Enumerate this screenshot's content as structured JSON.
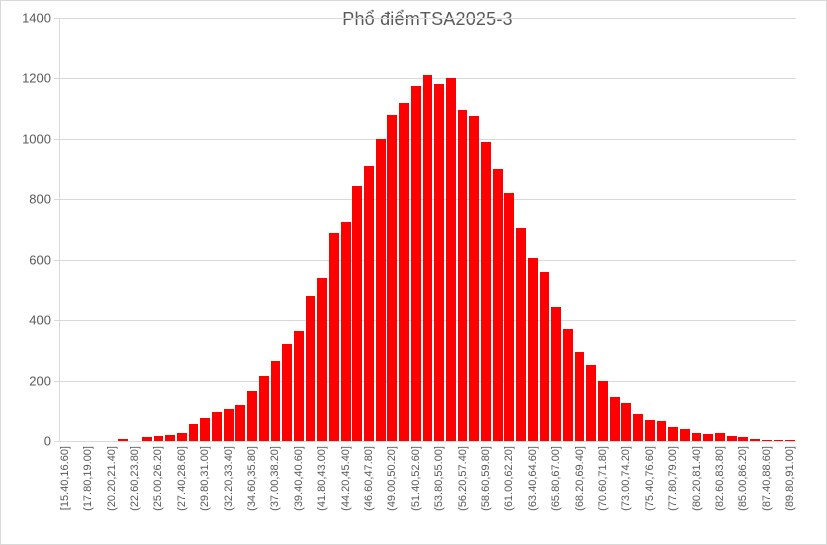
{
  "chart_data": {
    "type": "bar",
    "chart_kind": "histogram",
    "title": "Phổ điểmTSA2025-3",
    "xlabel": "",
    "ylabel": "",
    "ylim": [
      0,
      1400
    ],
    "yticks": [
      0,
      200,
      400,
      600,
      800,
      1000,
      1200,
      1400
    ],
    "grid": "horizontal",
    "legend": "none",
    "bin_start": 15.4,
    "bin_width": 1.2,
    "n_bins": 63,
    "x_tick_shown_every": 2,
    "x_tick_labels_shown": [
      "[15.40,16.60]",
      "(17.80,19.00]",
      "(20.20,21.40]",
      "(22.60,23.80]",
      "(25.00,26.20]",
      "(27.40,28.60]",
      "(29.80,31.00]",
      "(32.20,33.40]",
      "(34.60,35.80]",
      "(37.00,38.20]",
      "(39.40,40.60]",
      "(41.80,43.00]",
      "(44.20,45.40]",
      "(46.60,47.80]",
      "(49.00,50.20]",
      "(51.40,52.60]",
      "(53.80,55.00]",
      "(56.20,57.40]",
      "(58.60,59.80]",
      "(61.00,62.20]",
      "(63.40,64.60]",
      "(65.80,67.00]",
      "(68.20,69.40]",
      "(70.60,71.80]",
      "(73.00,74.20]",
      "(75.40,76.60]",
      "(77.80,79.00]",
      "(80.20,81.40]",
      "(82.60,83.80]",
      "(85.00,86.20]",
      "(87.40,88.60]",
      "(89.80,91.00]"
    ],
    "values": [
      0,
      0,
      0,
      0,
      0,
      8,
      0,
      12,
      15,
      20,
      28,
      55,
      75,
      95,
      105,
      120,
      165,
      215,
      265,
      320,
      365,
      480,
      540,
      690,
      725,
      845,
      910,
      1000,
      1080,
      1120,
      1175,
      1210,
      1180,
      1200,
      1095,
      1075,
      990,
      900,
      820,
      705,
      605,
      560,
      445,
      370,
      295,
      250,
      200,
      145,
      125,
      90,
      70,
      65,
      45,
      40,
      25,
      23,
      28,
      15,
      12,
      6,
      3,
      2,
      1
    ],
    "bar_color": "#ff0000",
    "grid_color": "#d9d9d9",
    "text_color": "#595959",
    "background_color": "#ffffff"
  }
}
